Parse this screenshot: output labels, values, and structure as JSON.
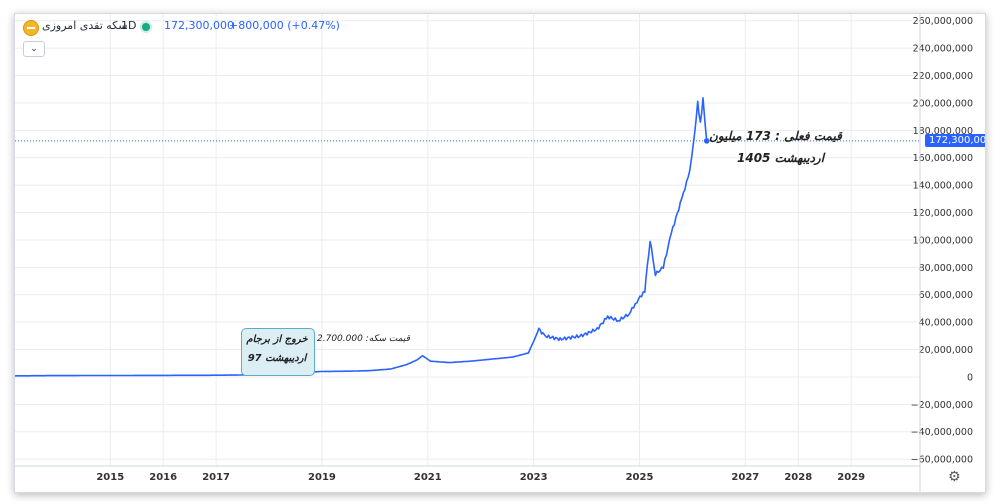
{
  "header": {
    "symbol": "سکه تقدی امروزی",
    "interval": "1D .",
    "last_price": "172,300,000",
    "change": "+800,000 (+0.47%)",
    "collapse_glyph": "⌄",
    "settings_glyph": "⚙"
  },
  "annotations": {
    "exit_line1": "خروج از برجام",
    "exit_line2": "اردیبهشت 97",
    "exit_price": "قیمت سکه: 2.700.000",
    "current_line1": "قیمت فعلی : 173 میلیون",
    "current_line2": "اردیبهشت 1405"
  },
  "price_label": "172,300,000",
  "colors": {
    "line": "#2962ff",
    "grid": "#e9ecf1",
    "callout_fill": "#dbeef4",
    "callout_border": "#5aaec0"
  },
  "chart_data": {
    "type": "line",
    "title": "",
    "xlabel": "",
    "ylabel": "",
    "x_ticks": [
      "2015",
      "2016",
      "2017",
      "2019",
      "2021",
      "2023",
      "2025",
      "2027",
      "2028",
      "2029"
    ],
    "x_tick_years": [
      2015,
      2016,
      2017,
      2019,
      2021,
      2023,
      2025,
      2027,
      2028,
      2029
    ],
    "y_ticks": [
      "260,000,000",
      "240,000,000",
      "220,000,000",
      "200,000,000",
      "180,000,000",
      "160,000,000",
      "140,000,000",
      "120,000,000",
      "100,000,000",
      "80,000,000",
      "60,000,000",
      "40,000,000",
      "20,000,000",
      "0",
      "−20,000,000",
      "−40,000,000",
      "−60,000,000"
    ],
    "ylim": [
      -65000000,
      262000000
    ],
    "xlim": [
      2013.2,
      2030.3
    ],
    "grid": true,
    "series": [
      {
        "values": [
          [
            2013.2,
            800000
          ],
          [
            2014.0,
            1000000
          ],
          [
            2015.0,
            1050000
          ],
          [
            2016.0,
            1150000
          ],
          [
            2017.0,
            1250000
          ],
          [
            2017.6,
            1450000
          ],
          [
            2018.0,
            1700000
          ],
          [
            2018.35,
            2700000
          ],
          [
            2018.7,
            3400000
          ],
          [
            2019.0,
            4000000
          ],
          [
            2019.5,
            4200000
          ],
          [
            2019.9,
            4600000
          ],
          [
            2020.3,
            5800000
          ],
          [
            2020.6,
            9000000
          ],
          [
            2020.8,
            12500000
          ],
          [
            2020.9,
            15500000
          ],
          [
            2021.05,
            11500000
          ],
          [
            2021.4,
            10500000
          ],
          [
            2021.8,
            11500000
          ],
          [
            2022.2,
            13000000
          ],
          [
            2022.6,
            14500000
          ],
          [
            2022.9,
            17500000
          ],
          [
            2023.0,
            26000000
          ],
          [
            2023.1,
            35000000
          ],
          [
            2023.2,
            30000000
          ],
          [
            2023.5,
            27500000
          ],
          [
            2023.9,
            30000000
          ],
          [
            2024.2,
            35000000
          ],
          [
            2024.4,
            44000000
          ],
          [
            2024.6,
            41000000
          ],
          [
            2024.8,
            46000000
          ],
          [
            2024.95,
            55000000
          ],
          [
            2025.1,
            63000000
          ],
          [
            2025.2,
            100000000
          ],
          [
            2025.3,
            75000000
          ],
          [
            2025.45,
            80000000
          ],
          [
            2025.6,
            105000000
          ],
          [
            2025.8,
            130000000
          ],
          [
            2025.95,
            150000000
          ],
          [
            2026.02,
            170000000
          ],
          [
            2026.1,
            200000000
          ],
          [
            2026.15,
            185000000
          ],
          [
            2026.2,
            203000000
          ],
          [
            2026.27,
            172300000
          ]
        ]
      }
    ],
    "last_value": 172300000
  }
}
